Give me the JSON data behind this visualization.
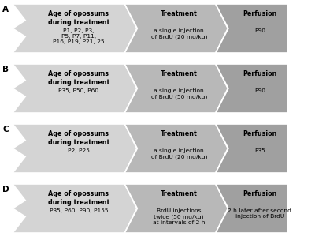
{
  "rows": [
    {
      "label": "A",
      "box1_title": "Age of opossums\nduring treatment",
      "box1_content": "P1, P2, P3,\nP5, P7, P11,\nP16, P19, P21, 25",
      "box2_title": "Treatment",
      "box2_content": "a single injection\nof BrdU (20 mg/kg)",
      "box3_title": "Perfusion",
      "box3_content": "P90"
    },
    {
      "label": "B",
      "box1_title": "Age of opossums\nduring treatment",
      "box1_content": "P35, P50, P60",
      "box2_title": "Treatment",
      "box2_content": "a single injection\nof BrdU (50 mg/kg)",
      "box3_title": "Perfusion",
      "box3_content": "P90"
    },
    {
      "label": "C",
      "box1_title": "Age of opossums\nduring treatment",
      "box1_content": "P2, P25",
      "box2_title": "Treatment",
      "box2_content": "a single injection\nof BrdU (20 mg/kg)",
      "box3_title": "Perfusion",
      "box3_content": "P35"
    },
    {
      "label": "D",
      "box1_title": "Age of opossums\nduring treatment",
      "box1_content": "P35, P60, P90, P155",
      "box2_title": "Treatment",
      "box2_content": "BrdU injections\ntwice (50 mg/kg)\nat intervals of 2 h",
      "box3_title": "Perfusion",
      "box3_content": "2 h later after second\ninjection of BrdU"
    }
  ],
  "color_light": "#d4d4d4",
  "color_mid": "#b8b8b8",
  "color_dark": "#a0a0a0",
  "bg_color": "#ffffff",
  "title_fontsize": 5.8,
  "content_fontsize": 5.4,
  "label_fontsize": 7.5
}
